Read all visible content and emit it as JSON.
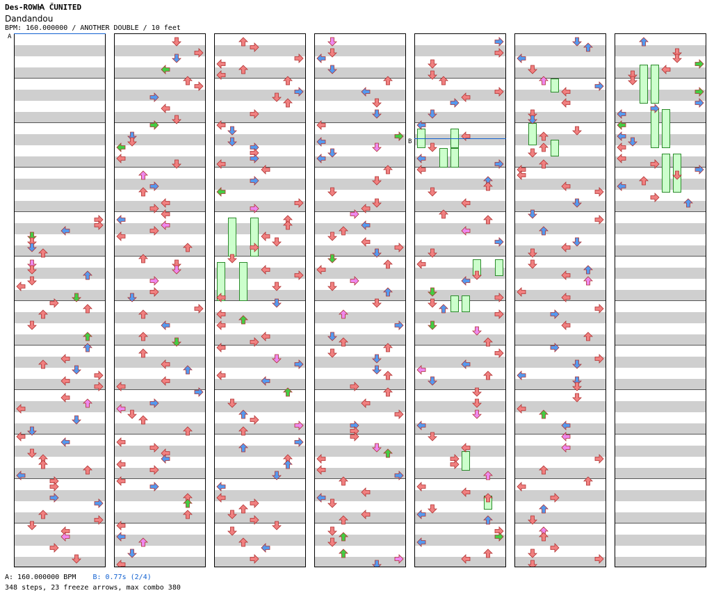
{
  "header": {
    "title": "Des-ROWꙖ ČUNITED",
    "song": "Dandandou",
    "meta": "BPM: 160.000000 / ANOTHER DOUBLE / 10 feet"
  },
  "markers": {
    "a": "A",
    "b": "B"
  },
  "footer": {
    "a_info": "A: 160.000000 BPM",
    "b_info": "B: 0.77s (2/4)",
    "stats": "348 steps, 23 freeze arrows, max combo 380"
  },
  "colors": {
    "quarter": "#f08080",
    "eighth": "#5599ee",
    "sixteenth": "#ee88ee",
    "freeze": "#44cc44",
    "stripe": "#cfcfcf"
  }
}
